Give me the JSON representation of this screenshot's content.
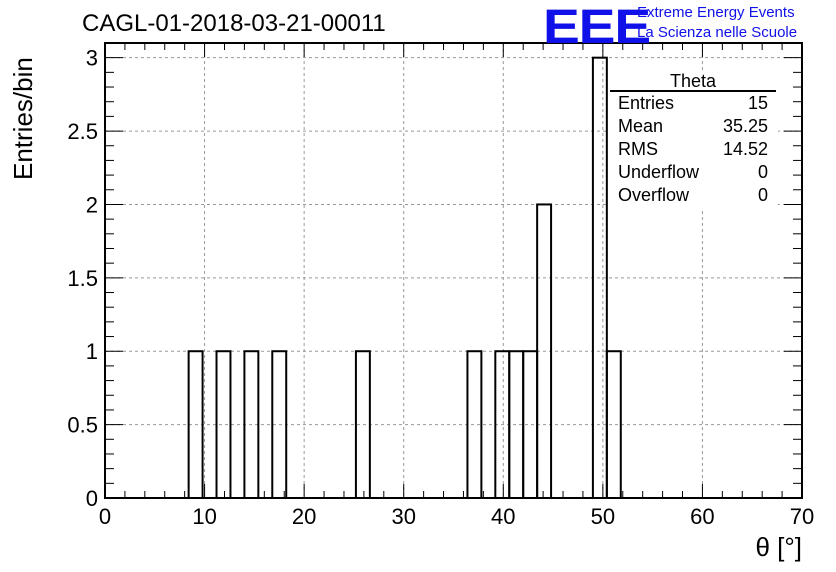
{
  "header": {
    "title": "CAGL-01-2018-03-21-00011",
    "logo": "EEE",
    "logo_line1": "Extreme Energy Events",
    "logo_line2": "La Scienza nelle Scuole"
  },
  "stats_box": {
    "title": "Theta",
    "rows": [
      {
        "label": "Entries",
        "value": "15"
      },
      {
        "label": "Mean",
        "value": "35.25"
      },
      {
        "label": "RMS",
        "value": "14.52"
      },
      {
        "label": "Underflow",
        "value": "0"
      },
      {
        "label": "Overflow",
        "value": "0"
      }
    ]
  },
  "chart_data": {
    "type": "bar",
    "style": "histogram-step",
    "xlabel": "θ [°]",
    "ylabel": "Entries/bin",
    "xlim": [
      0,
      70
    ],
    "ylim": [
      0,
      3.1
    ],
    "bin_width": 1.4,
    "xticks": [
      0,
      10,
      20,
      30,
      40,
      50,
      60,
      70
    ],
    "yticks": [
      0,
      0.5,
      1,
      1.5,
      2,
      2.5,
      3
    ],
    "ytick_labels": [
      "0",
      "0.5",
      "1",
      "1.5",
      "2",
      "2.5",
      "3"
    ],
    "grid": true,
    "bins": [
      {
        "x": 8.4,
        "value": 1
      },
      {
        "x": 11.2,
        "value": 1
      },
      {
        "x": 14.0,
        "value": 1
      },
      {
        "x": 16.8,
        "value": 1
      },
      {
        "x": 25.2,
        "value": 1
      },
      {
        "x": 36.4,
        "value": 1
      },
      {
        "x": 39.2,
        "value": 1
      },
      {
        "x": 40.6,
        "value": 1
      },
      {
        "x": 42.0,
        "value": 1
      },
      {
        "x": 43.4,
        "value": 2
      },
      {
        "x": 49.0,
        "value": 3
      },
      {
        "x": 50.4,
        "value": 1
      }
    ],
    "line_color": "#000000"
  }
}
